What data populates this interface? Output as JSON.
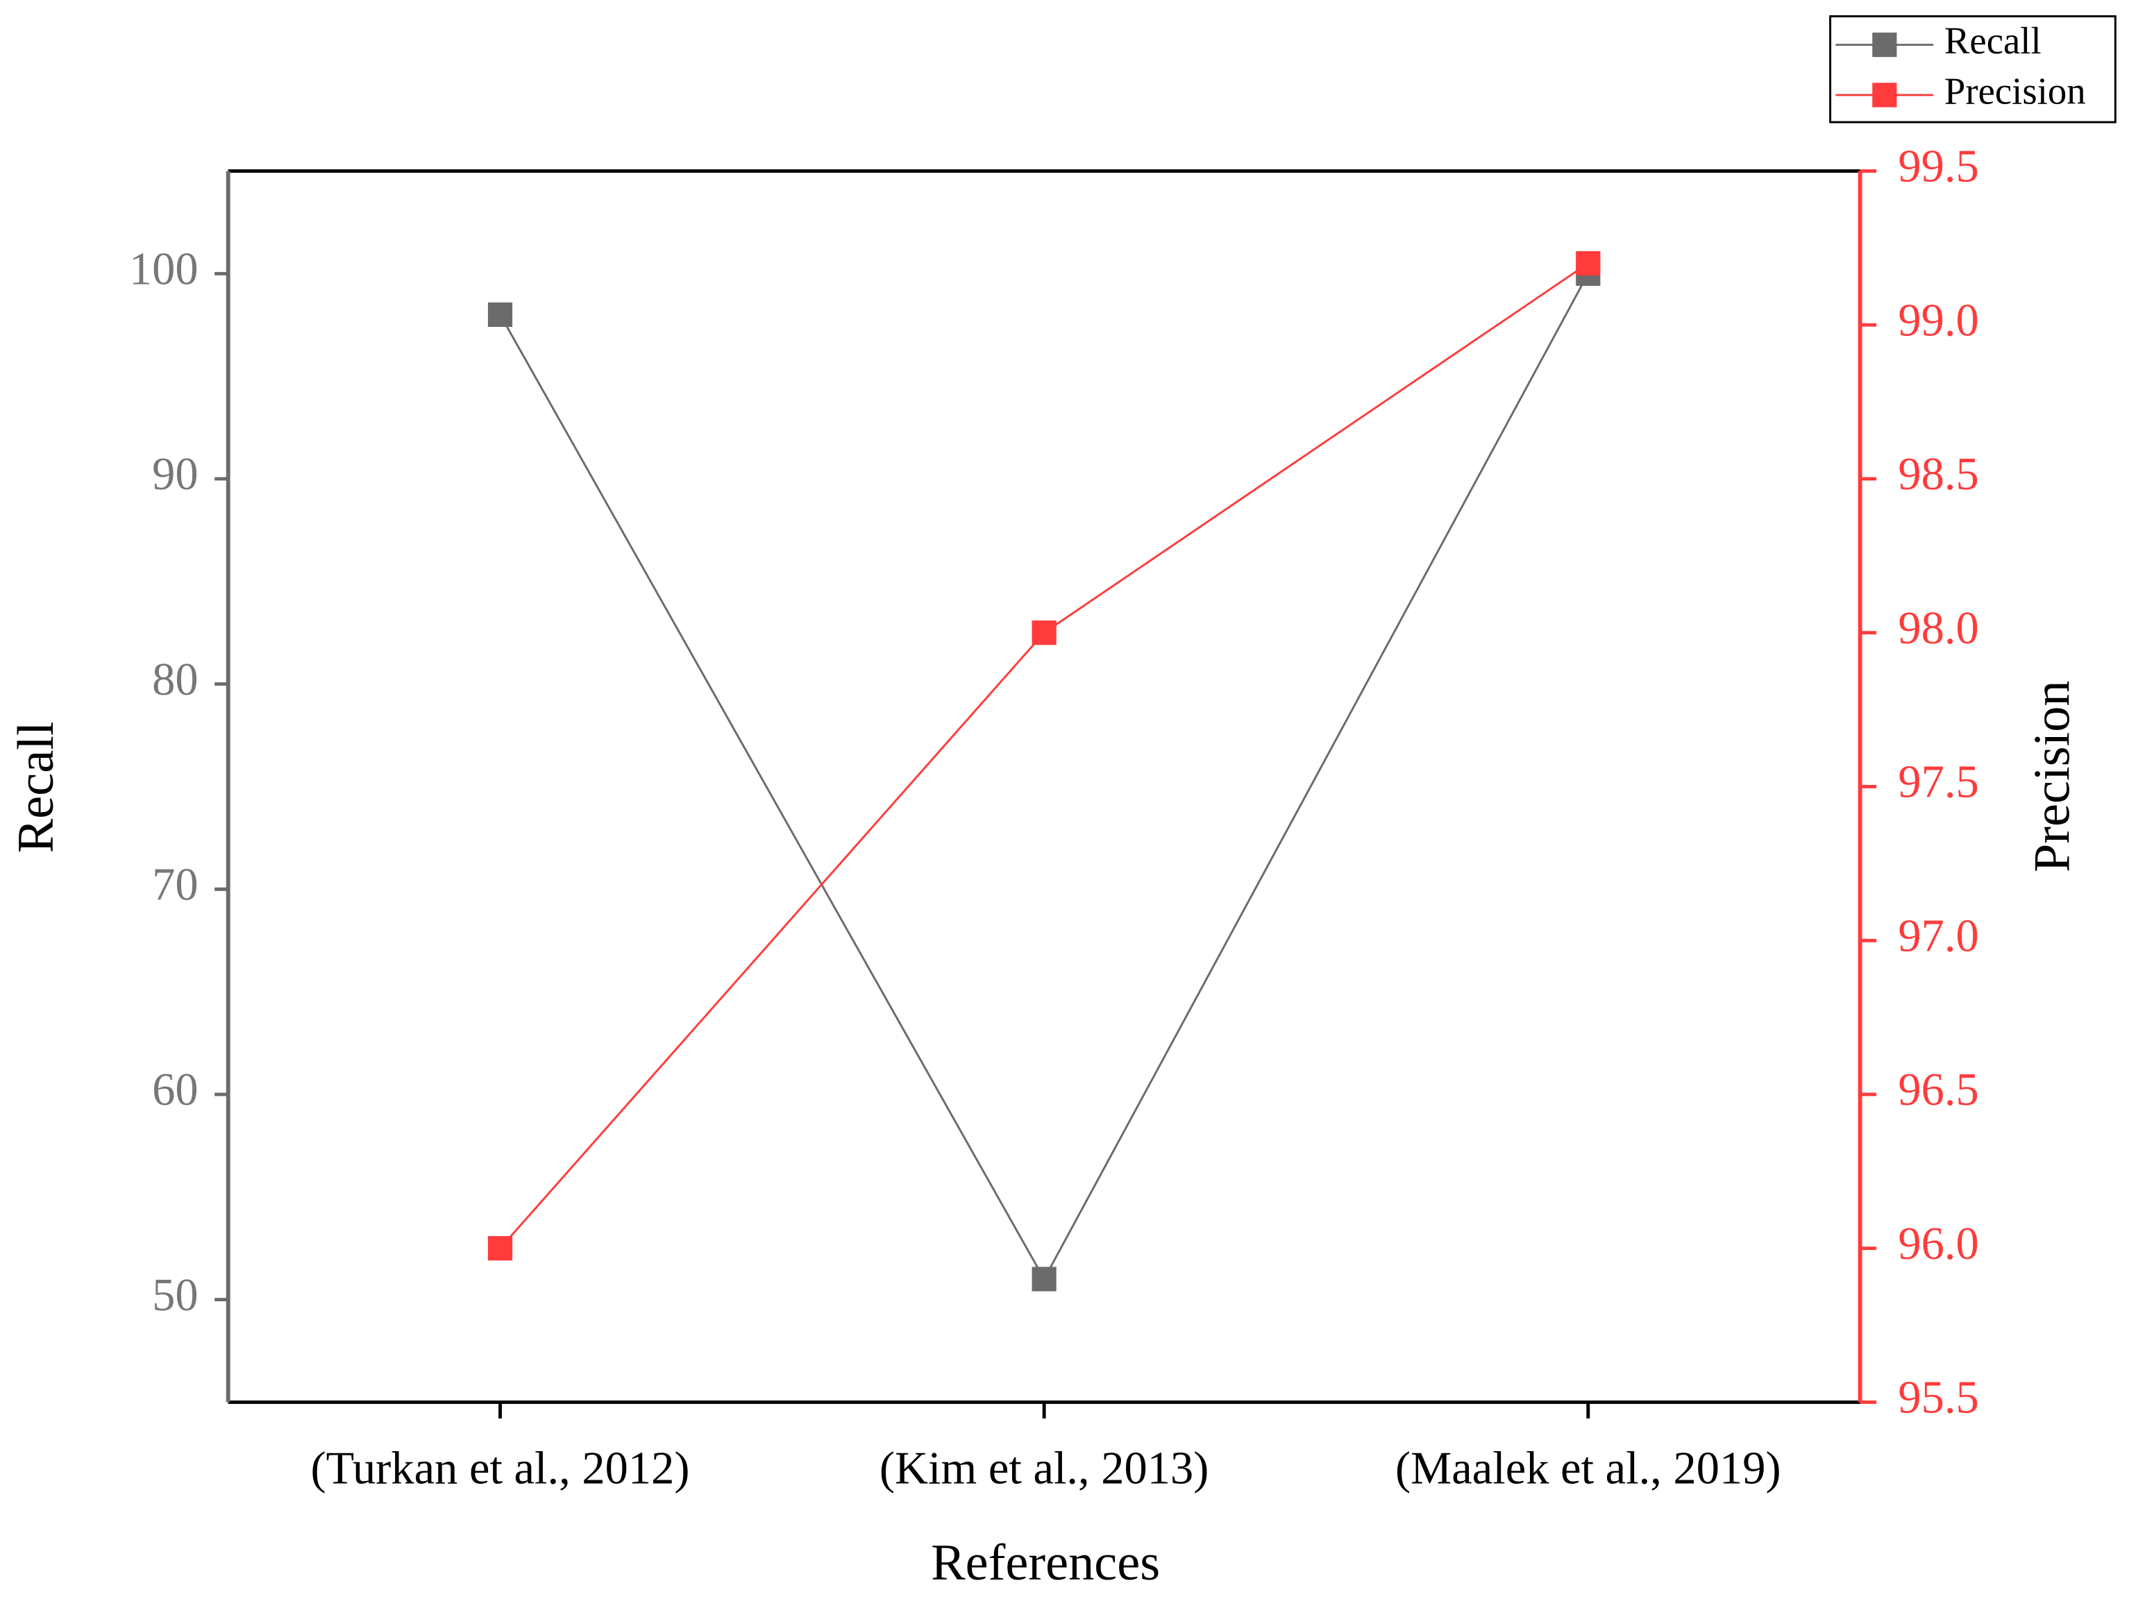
{
  "chart_data": {
    "type": "line",
    "x_label": "References",
    "y_label": "Recall",
    "y2_label": "Precision",
    "categories": [
      "(Turkan et al., 2012)",
      "(Kim et al., 2013)",
      "(Maalek et al., 2019)"
    ],
    "series": [
      {
        "name": "Recall",
        "color": "#6b6b6b",
        "values": [
          98,
          51,
          100
        ]
      },
      {
        "name": "Precision",
        "color": "#ff3b3b",
        "axis": "y2",
        "values": [
          96,
          98,
          99.2
        ]
      }
    ],
    "ylim": [
      45,
      105
    ],
    "yticks": [
      50,
      60,
      70,
      80,
      90,
      100
    ],
    "y2lim": [
      95.5,
      99.5
    ],
    "y2ticks": [
      95.5,
      {
        "value": 96,
        "label": "96.0"
      },
      96.5,
      {
        "value": 97,
        "label": "97.0"
      },
      97.5,
      {
        "value": 98,
        "label": "98.0"
      },
      98.5,
      {
        "value": 99,
        "label": "99.0"
      },
      99.5
    ],
    "legend": "upper right",
    "grid": false
  }
}
